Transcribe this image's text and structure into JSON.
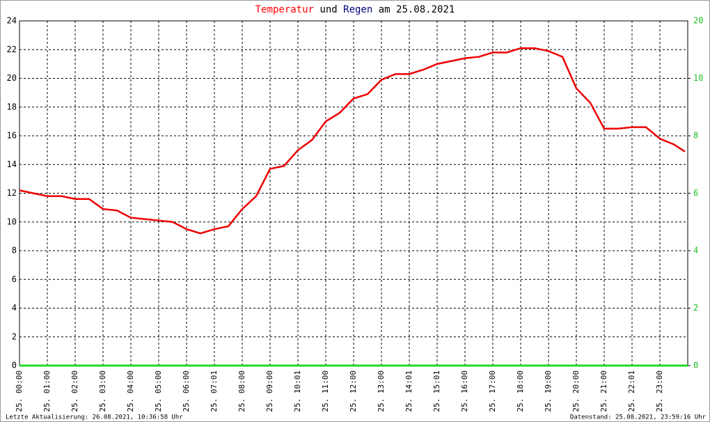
{
  "chart_data": {
    "type": "line",
    "title_parts": [
      {
        "text": "Temperatur",
        "color": "#ff0000"
      },
      {
        "text": "und",
        "color": "#000000"
      },
      {
        "text": "Regen",
        "color": "#000080"
      },
      {
        "text": "am 25.08.2021",
        "color": "#000000"
      }
    ],
    "categories": [
      "25. 00:00",
      "25. 01:00",
      "25. 02:00",
      "25. 03:00",
      "25. 04:00",
      "25. 05:00",
      "25. 06:00",
      "25. 07:01",
      "25. 08:00",
      "25. 09:00",
      "25. 10:01",
      "25. 11:00",
      "25. 12:00",
      "25. 13:00",
      "25. 14:01",
      "25. 15:01",
      "25. 16:00",
      "25. 17:00",
      "25. 18:00",
      "25. 19:00",
      "25. 20:00",
      "25. 21:00",
      "25. 22:01",
      "25. 23:00"
    ],
    "xlim": [
      0,
      24
    ],
    "ylim": [
      0,
      24
    ],
    "yticks": [
      0,
      2,
      4,
      6,
      8,
      10,
      12,
      14,
      16,
      18,
      20,
      22,
      24
    ],
    "y2lim": [
      0,
      12
    ],
    "y2ticks": [
      0,
      2,
      4,
      6,
      8,
      10
    ],
    "y2_top_label": "20",
    "grid": true,
    "series": [
      {
        "name": "Temperatur",
        "color": "#ee0000",
        "x": [
          0,
          0.5,
          1,
          1.5,
          2,
          2.5,
          3,
          3.5,
          4,
          4.5,
          5,
          5.5,
          6,
          6.5,
          7,
          7.5,
          8,
          8.5,
          9,
          9.5,
          10,
          10.5,
          11,
          11.5,
          12,
          12.5,
          13,
          13.5,
          14,
          14.5,
          15,
          15.5,
          16,
          16.5,
          17,
          17.5,
          18,
          18.5,
          19,
          19.5,
          20,
          20.5,
          21,
          21.5,
          22,
          22.5,
          23,
          23.5,
          23.9
        ],
        "values": [
          12.2,
          12.0,
          11.8,
          11.8,
          11.6,
          11.6,
          10.9,
          10.8,
          10.3,
          10.2,
          10.1,
          10.0,
          9.5,
          9.2,
          9.5,
          9.7,
          10.9,
          11.8,
          13.7,
          13.9,
          15.0,
          15.7,
          17.0,
          17.6,
          18.6,
          18.9,
          19.9,
          20.3,
          20.3,
          20.6,
          21.0,
          21.2,
          21.4,
          21.5,
          21.8,
          21.8,
          22.1,
          22.1,
          21.9,
          21.5,
          19.3,
          18.3,
          16.5,
          16.5,
          16.6,
          16.6,
          15.8,
          15.4,
          14.9
        ]
      },
      {
        "name": "Regen",
        "color": "#22dd22",
        "axis": "y2",
        "x": [
          0,
          24
        ],
        "values": [
          0,
          0
        ]
      }
    ],
    "footer_left": "Letzte Aktualisierung: 26.08.2021, 10:36:58 Uhr",
    "footer_right": "Datenstand: 25.08.2021, 23:59:16 Uhr"
  }
}
